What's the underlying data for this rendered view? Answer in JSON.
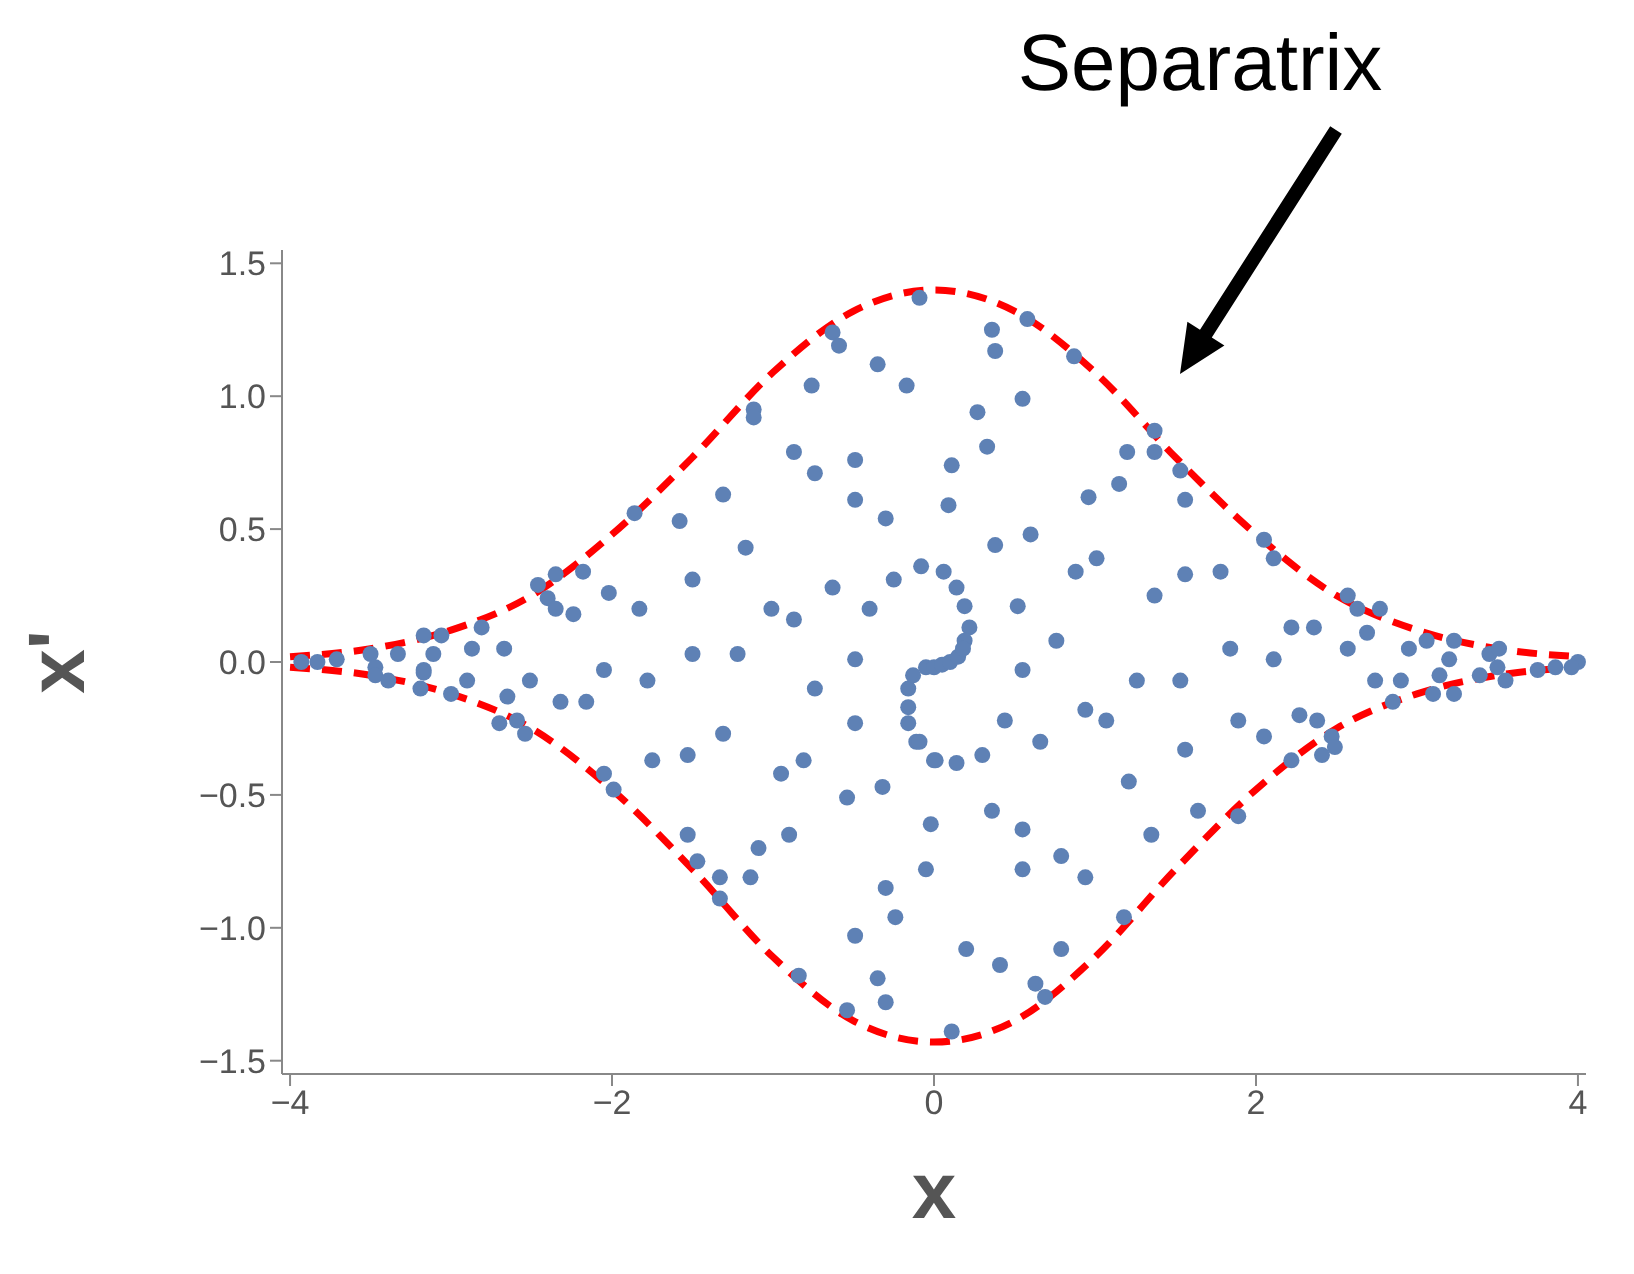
{
  "chart_data": {
    "type": "scatter",
    "xlabel": "x",
    "ylabel": "x'",
    "line_style": "dashed",
    "xlim": [
      -4.05,
      4.05
    ],
    "ylim": [
      -1.55,
      1.55
    ],
    "xticks": [
      {
        "value": -4,
        "label": "−4"
      },
      {
        "value": -2,
        "label": "−2"
      },
      {
        "value": 0,
        "label": "0"
      },
      {
        "value": 2,
        "label": "2"
      },
      {
        "value": 4,
        "label": "4"
      }
    ],
    "yticks": [
      {
        "value": -1.5,
        "label": "−1.5"
      },
      {
        "value": -1,
        "label": "−1.0"
      },
      {
        "value": -0.5,
        "label": "−0.5"
      },
      {
        "value": 0,
        "label": "0.0"
      },
      {
        "value": 0.5,
        "label": "0.5"
      },
      {
        "value": 1,
        "label": "1.0"
      },
      {
        "value": 1.5,
        "label": "1.5"
      }
    ],
    "annotations": [
      "Separatrix"
    ],
    "series": [
      {
        "color": "#5e81b5",
        "marker": "circle",
        "x": [
          -0.09,
          -0.63,
          -0.59,
          -0.35,
          -0.76,
          -0.17,
          -1.12,
          -1.12,
          -0.87,
          -0.74,
          -0.49,
          -0.49,
          -1.31,
          -0.3,
          -1.58,
          -1.86,
          -1.17,
          -1.5,
          -0.63,
          -0.25,
          -0.08,
          -0.4,
          -1.01,
          -0.87,
          -2.02,
          -1.83,
          -2.18,
          -2.35,
          -2.46,
          -2.4,
          -2.35,
          -2.24,
          -2.81,
          -3.17,
          -3.06,
          -3.33,
          -3.11,
          -2.87,
          -2.67,
          -3.5,
          -3.71,
          -3.83,
          -1.5,
          -1.22,
          -0.49,
          -2.05,
          -3.17,
          0.36,
          0.38,
          0.58,
          0.87,
          0.55,
          0.27,
          0.33,
          0.11,
          0.09,
          1.37,
          1.2,
          1.37,
          1.53,
          1.56,
          1.15,
          0.96,
          0.38,
          0.6,
          1.01,
          0.88,
          0.06,
          0.14,
          0.19,
          0.22,
          0.19,
          0.52,
          0.76,
          1.37,
          1.56,
          1.78,
          2.05,
          2.11,
          2.57,
          2.63,
          2.77,
          2.69,
          2.22,
          2.36,
          1.84,
          2.11,
          2.57,
          2.95,
          3.06,
          3.23,
          3.2,
          3.45,
          3.51,
          3.75,
          3.86,
          4.0,
          0.55,
          -0.05,
          0.0,
          0.05,
          0.1,
          0.15,
          0.18,
          -3.93,
          -3.47,
          -3.47,
          -3.39,
          -3.17,
          -3.19,
          -3.0,
          -2.9,
          -2.7,
          -2.59,
          -2.54,
          -2.65,
          -2.51,
          -2.32,
          -2.16,
          -1.78,
          -2.05,
          -1.99,
          -1.75,
          -1.53,
          -1.31,
          -1.53,
          -1.47,
          -1.33,
          -1.33,
          -1.14,
          -1.09,
          -0.9,
          -0.95,
          -0.81,
          -0.74,
          -0.49,
          -0.54,
          -0.32,
          -0.49,
          -0.3,
          -0.24,
          -0.35,
          -0.3,
          -0.54,
          -0.84,
          -0.02,
          -0.05,
          0.01,
          -0.11,
          -0.16,
          -0.16,
          -0.16,
          -0.13,
          0.0,
          0.14,
          -0.09,
          0.3,
          0.44,
          0.66,
          0.36,
          0.55,
          0.55,
          0.79,
          0.94,
          0.94,
          1.07,
          1.26,
          1.53,
          1.21,
          1.35,
          1.18,
          1.56,
          1.64,
          1.89,
          1.89,
          2.05,
          2.22,
          2.27,
          2.38,
          2.41,
          2.47,
          2.49,
          2.74,
          2.85,
          2.9,
          3.1,
          3.14,
          3.23,
          3.39,
          3.55,
          3.5,
          3.96,
          0.2,
          0.41,
          0.79,
          0.63,
          0.69,
          0.11
        ],
        "values": [
          1.37,
          1.24,
          1.19,
          1.12,
          1.04,
          1.04,
          0.95,
          0.92,
          0.79,
          0.71,
          0.76,
          0.61,
          0.63,
          0.54,
          0.53,
          0.56,
          0.43,
          0.31,
          0.28,
          0.31,
          0.36,
          0.2,
          0.2,
          0.16,
          0.26,
          0.2,
          0.34,
          0.33,
          0.29,
          0.24,
          0.2,
          0.18,
          0.13,
          0.1,
          0.1,
          0.03,
          0.03,
          0.05,
          0.05,
          0.03,
          0.01,
          0.0,
          0.03,
          0.03,
          0.01,
          -0.03,
          -0.03,
          1.25,
          1.17,
          1.29,
          1.15,
          0.99,
          0.94,
          0.81,
          0.74,
          0.59,
          0.87,
          0.79,
          0.79,
          0.72,
          0.61,
          0.67,
          0.62,
          0.44,
          0.48,
          0.39,
          0.34,
          0.34,
          0.28,
          0.21,
          0.13,
          0.08,
          0.21,
          0.08,
          0.25,
          0.33,
          0.34,
          0.46,
          0.39,
          0.25,
          0.2,
          0.2,
          0.11,
          0.13,
          0.13,
          0.05,
          0.01,
          0.05,
          0.05,
          0.08,
          0.08,
          0.01,
          0.03,
          0.05,
          -0.03,
          -0.02,
          0.0,
          -0.03,
          -0.02,
          -0.02,
          -0.01,
          0.0,
          0.02,
          0.05,
          0.0,
          -0.02,
          -0.05,
          -0.07,
          -0.04,
          -0.1,
          -0.12,
          -0.07,
          -0.23,
          -0.22,
          -0.27,
          -0.13,
          -0.07,
          -0.15,
          -0.15,
          -0.07,
          -0.42,
          -0.48,
          -0.37,
          -0.35,
          -0.27,
          -0.65,
          -0.75,
          -0.81,
          -0.89,
          -0.81,
          -0.7,
          -0.65,
          -0.42,
          -0.37,
          -0.1,
          -0.23,
          -0.51,
          -0.47,
          -1.03,
          -0.85,
          -0.96,
          -1.19,
          -1.28,
          -1.31,
          -1.18,
          -0.61,
          -0.78,
          -0.37,
          -0.3,
          -0.23,
          -0.17,
          -0.1,
          -0.05,
          -0.37,
          -0.38,
          -0.3,
          -0.35,
          -0.22,
          -0.3,
          -0.56,
          -0.63,
          -0.78,
          -0.73,
          -0.81,
          -0.18,
          -0.22,
          -0.07,
          -0.07,
          -0.45,
          -0.65,
          -0.96,
          -0.33,
          -0.56,
          -0.22,
          -0.58,
          -0.28,
          -0.37,
          -0.2,
          -0.22,
          -0.35,
          -0.28,
          -0.32,
          -0.07,
          -0.15,
          -0.07,
          -0.12,
          -0.05,
          -0.12,
          -0.05,
          -0.07,
          -0.02,
          -0.02,
          -1.08,
          -1.14,
          -1.08,
          -1.21,
          -1.26,
          -1.39
        ]
      },
      {
        "type": "line",
        "color": "#ff0000",
        "x": [
          -4,
          -3.5,
          -3,
          -2.5,
          -2,
          -1.5,
          -1,
          -0.5,
          0,
          0.5,
          1,
          1.5,
          2,
          2.5,
          3,
          3.5,
          4
        ],
        "values": [
          0.02,
          0.05,
          0.12,
          0.25,
          0.48,
          0.77,
          1.09,
          1.32,
          1.4,
          1.32,
          1.09,
          0.77,
          0.48,
          0.25,
          0.12,
          0.05,
          0.02
        ]
      },
      {
        "type": "line",
        "color": "#ff0000",
        "x": [
          -4,
          -3.5,
          -3,
          -2.5,
          -2,
          -1.5,
          -1,
          -0.5,
          0,
          0.5,
          1,
          1.5,
          2,
          2.5,
          3,
          3.5,
          4
        ],
        "values": [
          -0.02,
          -0.05,
          -0.12,
          -0.25,
          -0.48,
          -0.78,
          -1.11,
          -1.35,
          -1.43,
          -1.35,
          -1.11,
          -0.78,
          -0.48,
          -0.25,
          -0.12,
          -0.05,
          -0.02
        ]
      }
    ]
  }
}
